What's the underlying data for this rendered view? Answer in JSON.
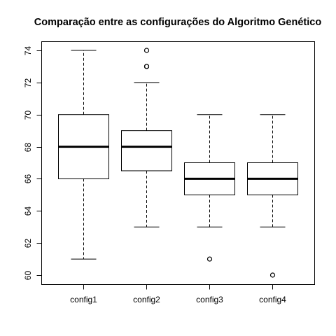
{
  "chart_data": {
    "type": "boxplot",
    "title": "Comparação entre as configurações do Algoritmo Genético",
    "xlabel": "",
    "ylabel": "",
    "categories": [
      "config1",
      "config2",
      "config3",
      "config4"
    ],
    "ylim": [
      59.5,
      75.0
    ],
    "yticks": [
      60,
      62,
      64,
      66,
      68,
      70,
      72,
      74
    ],
    "ytick_labels": [
      "60",
      "62",
      "64",
      "66",
      "68",
      "70",
      "72",
      "74"
    ],
    "grid": false,
    "boxes": [
      {
        "name": "config1",
        "whisker_low": 61,
        "q1": 66,
        "median": 68,
        "q3": 70,
        "whisker_high": 74,
        "outliers": []
      },
      {
        "name": "config2",
        "whisker_low": 63,
        "q1": 66.5,
        "median": 68,
        "q3": 69,
        "whisker_high": 72,
        "outliers": [
          73,
          73,
          74
        ]
      },
      {
        "name": "config3",
        "whisker_low": 63,
        "q1": 65,
        "median": 66,
        "q3": 67,
        "whisker_high": 70,
        "outliers": [
          61
        ]
      },
      {
        "name": "config4",
        "whisker_low": 63,
        "q1": 65,
        "median": 66,
        "q3": 67,
        "whisker_high": 70,
        "outliers": [
          60
        ]
      }
    ]
  }
}
